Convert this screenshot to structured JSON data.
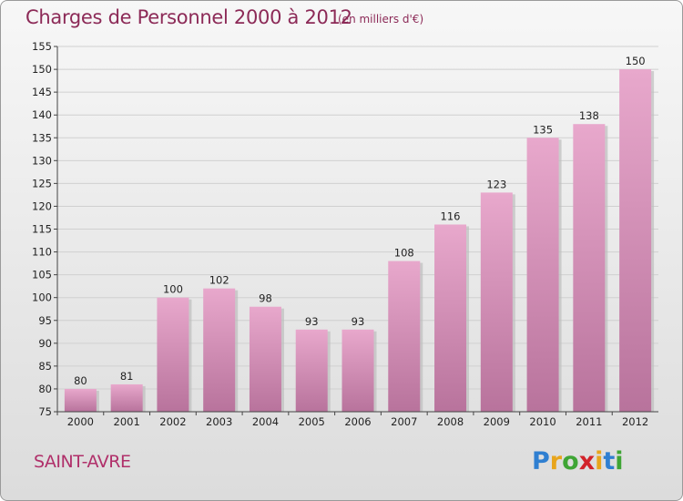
{
  "header": {
    "title": "Charges de Personnel 2000 à 2012",
    "subtitle": "(en milliers d'€)"
  },
  "footer": {
    "city": "SAINT-AVRE",
    "logo_letters": [
      "P",
      "r",
      "o",
      "x",
      "i",
      "t",
      "i"
    ],
    "logo_colors": [
      "#2f7fd1",
      "#e8a51c",
      "#3fa535",
      "#d2232a",
      "#e8a51c",
      "#2f7fd1",
      "#3fa535"
    ]
  },
  "chart_data": {
    "type": "bar",
    "title": "Charges de Personnel 2000 à 2012",
    "subtitle": "(en milliers d'€)",
    "categories": [
      "2000",
      "2001",
      "2002",
      "2003",
      "2004",
      "2005",
      "2006",
      "2007",
      "2008",
      "2009",
      "2010",
      "2011",
      "2012"
    ],
    "values": [
      80,
      81,
      100,
      102,
      98,
      93,
      93,
      108,
      116,
      123,
      135,
      138,
      150
    ],
    "value_labels": [
      "80",
      "81",
      "100",
      "102",
      "98",
      "93",
      "93",
      "108",
      "116",
      "123",
      "135",
      "138",
      "150"
    ],
    "ylim": [
      75,
      155
    ],
    "yticks": [
      "75",
      "80",
      "85",
      "90",
      "95",
      "100",
      "105",
      "110",
      "115",
      "120",
      "125",
      "130",
      "135",
      "140",
      "145",
      "150",
      "155"
    ],
    "grid": true,
    "bar_color_top": "#e8a8cc",
    "bar_color_bottom": "#b8739c",
    "grid_color": "#d0d0d0"
  }
}
